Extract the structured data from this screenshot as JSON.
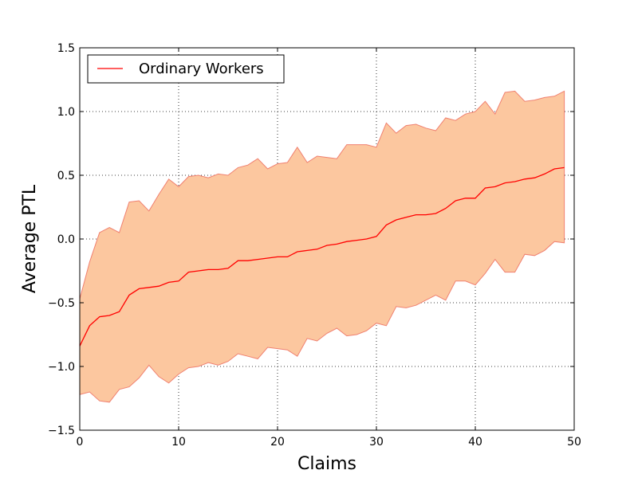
{
  "chart_data": {
    "type": "area",
    "title": "",
    "xlabel": "Claims",
    "ylabel": "Average PTL",
    "xlim": [
      0,
      50
    ],
    "ylim": [
      -1.5,
      1.5
    ],
    "xticks": [
      0,
      10,
      20,
      30,
      40,
      50
    ],
    "xtick_labels": [
      "0",
      "10",
      "20",
      "30",
      "40",
      "50"
    ],
    "yticks": [
      -1.5,
      -1.0,
      -0.5,
      0.0,
      0.5,
      1.0,
      1.5
    ],
    "ytick_labels": [
      "−1.5",
      "−1.0",
      "−0.5",
      "0.0",
      "0.5",
      "1.0",
      "1.5"
    ],
    "grid": true,
    "legend": {
      "position": "top-left",
      "entries": [
        "Ordinary Workers"
      ]
    },
    "colors": {
      "line": "#ff0000",
      "band_fill": "#fcc79f",
      "band_edge": "#f08070"
    },
    "x": [
      0,
      1,
      2,
      3,
      4,
      5,
      6,
      7,
      8,
      9,
      10,
      11,
      12,
      13,
      14,
      15,
      16,
      17,
      18,
      19,
      20,
      21,
      22,
      23,
      24,
      25,
      26,
      27,
      28,
      29,
      30,
      31,
      32,
      33,
      34,
      35,
      36,
      37,
      38,
      39,
      40,
      41,
      42,
      43,
      44,
      45,
      46,
      47,
      48,
      49
    ],
    "series": [
      {
        "name": "Ordinary Workers",
        "mean": [
          -0.84,
          -0.68,
          -0.61,
          -0.6,
          -0.57,
          -0.44,
          -0.39,
          -0.38,
          -0.37,
          -0.34,
          -0.33,
          -0.26,
          -0.25,
          -0.24,
          -0.24,
          -0.23,
          -0.17,
          -0.17,
          -0.16,
          -0.15,
          -0.14,
          -0.14,
          -0.1,
          -0.09,
          -0.08,
          -0.05,
          -0.04,
          -0.02,
          -0.01,
          0.0,
          0.02,
          0.11,
          0.15,
          0.17,
          0.19,
          0.19,
          0.2,
          0.24,
          0.3,
          0.32,
          0.32,
          0.4,
          0.41,
          0.44,
          0.45,
          0.47,
          0.48,
          0.51,
          0.55,
          0.56
        ],
        "upper": [
          -0.47,
          -0.18,
          0.05,
          0.09,
          0.05,
          0.29,
          0.3,
          0.22,
          0.35,
          0.47,
          0.41,
          0.49,
          0.5,
          0.48,
          0.51,
          0.5,
          0.56,
          0.58,
          0.63,
          0.55,
          0.59,
          0.6,
          0.72,
          0.6,
          0.65,
          0.64,
          0.63,
          0.74,
          0.74,
          0.74,
          0.72,
          0.91,
          0.83,
          0.89,
          0.9,
          0.87,
          0.85,
          0.95,
          0.93,
          0.98,
          1.0,
          1.08,
          0.98,
          1.15,
          1.16,
          1.08,
          1.09,
          1.11,
          1.12,
          1.16
        ],
        "lower": [
          -1.22,
          -1.2,
          -1.27,
          -1.28,
          -1.18,
          -1.16,
          -1.09,
          -0.99,
          -1.08,
          -1.13,
          -1.06,
          -1.01,
          -1.0,
          -0.97,
          -0.99,
          -0.96,
          -0.9,
          -0.92,
          -0.94,
          -0.85,
          -0.86,
          -0.87,
          -0.92,
          -0.78,
          -0.8,
          -0.74,
          -0.7,
          -0.76,
          -0.75,
          -0.72,
          -0.66,
          -0.68,
          -0.53,
          -0.54,
          -0.52,
          -0.48,
          -0.44,
          -0.48,
          -0.33,
          -0.33,
          -0.36,
          -0.27,
          -0.16,
          -0.26,
          -0.26,
          -0.12,
          -0.13,
          -0.09,
          -0.02,
          -0.03
        ]
      }
    ]
  }
}
